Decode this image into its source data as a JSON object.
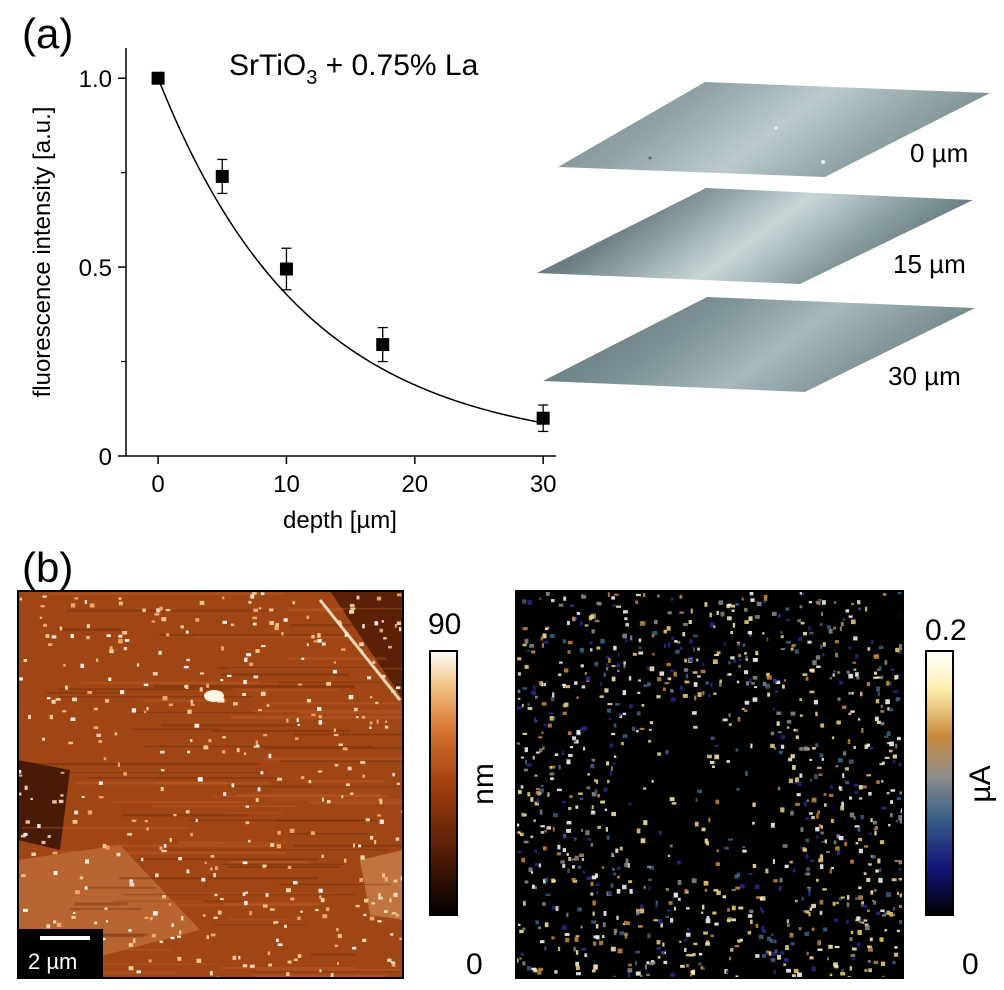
{
  "panel_a_label": "(a)",
  "panel_b_label": "(b)",
  "chart_data": {
    "type": "scatter",
    "title_prefix": "SrTiO",
    "title_subscript": "3",
    "title_suffix": " + 0.75% La",
    "xlabel": "depth [µm]",
    "ylabel": "fluorescence intensity [a.u.]",
    "xlim": [
      -2.5,
      31
    ],
    "ylim": [
      0,
      1.08
    ],
    "xticks": [
      0,
      10,
      20,
      30
    ],
    "xtick_labels": [
      "0",
      "10",
      "20",
      "30"
    ],
    "yticks": [
      0,
      0.5,
      1.0
    ],
    "ytick_labels": [
      "0",
      "0.5",
      "1.0"
    ],
    "minor_yticks": [
      0.25,
      0.75
    ],
    "series": [
      {
        "name": "measured",
        "x": [
          0,
          5,
          10,
          17.5,
          30
        ],
        "y": [
          1.0,
          0.74,
          0.495,
          0.295,
          0.1
        ],
        "yerr": [
          0.0,
          0.045,
          0.055,
          0.045,
          0.035
        ]
      }
    ],
    "fit": {
      "type": "exponential-offset",
      "a": 0.985,
      "tau": 11.5,
      "c": 0.015
    }
  },
  "depth_maps": [
    {
      "label": "0 µm"
    },
    {
      "label": "15 µm"
    },
    {
      "label": "30 µm"
    }
  ],
  "afm_maps": {
    "topography": {
      "colorbar_max": "90",
      "colorbar_min": "0",
      "unit": "nm",
      "scalebar": "2 µm",
      "colors": [
        "#000000",
        "#5a1e06",
        "#a4400f",
        "#d77330",
        "#f4c88c",
        "#ffffff"
      ]
    },
    "current": {
      "colorbar_max": "0.2",
      "colorbar_min": "0",
      "unit": "µA",
      "colors": [
        "#000000",
        "#15157a",
        "#3c6488",
        "#8c8c8c",
        "#c98a3c",
        "#fff0b0",
        "#ffffff"
      ]
    }
  }
}
